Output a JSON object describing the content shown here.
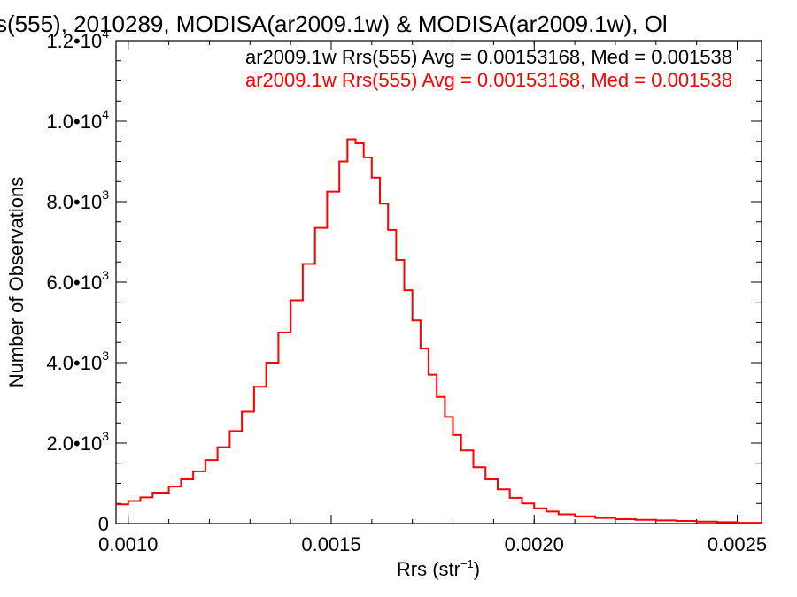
{
  "chart_data": {
    "type": "line",
    "title": "s(555), 2010289, MODISA(ar2009.1w) & MODISA(ar2009.1w), Ol",
    "xlabel": "Rrs (str",
    "xlabel_sup": "−1",
    "xlabel_tail": ")",
    "ylabel": "Number of Observations",
    "xlim": [
      0.00097,
      0.00256
    ],
    "ylim": [
      0,
      12000
    ],
    "x_ticks": [
      {
        "value": 0.001,
        "label": "0.0010"
      },
      {
        "value": 0.0015,
        "label": "0.0015"
      },
      {
        "value": 0.002,
        "label": "0.0020"
      },
      {
        "value": 0.0025,
        "label": "0.0025"
      }
    ],
    "y_ticks": [
      {
        "value": 0,
        "label": "0",
        "exp": ""
      },
      {
        "value": 2000,
        "label": "2.0•10",
        "exp": "3"
      },
      {
        "value": 4000,
        "label": "4.0•10",
        "exp": "3"
      },
      {
        "value": 6000,
        "label": "6.0•10",
        "exp": "3"
      },
      {
        "value": 8000,
        "label": "8.0•10",
        "exp": "3"
      },
      {
        "value": 10000,
        "label": "1.0•10",
        "exp": "4"
      },
      {
        "value": 12000,
        "label": "1.2•10",
        "exp": "4"
      }
    ],
    "legend": [
      {
        "text": "ar2009.1w Rrs(555) Avg = 0.00153168, Med = 0.001538",
        "color": "#000000"
      },
      {
        "text": "ar2009.1w Rrs(555) Avg = 0.00153168, Med = 0.001538",
        "color": "#ff0000"
      }
    ],
    "legend_position": "top-right",
    "grid": false,
    "series": [
      {
        "color": "#ff0000",
        "x": [
          0.00097,
          0.001,
          0.00103,
          0.00106,
          0.0011,
          0.00113,
          0.00116,
          0.00119,
          0.00122,
          0.00125,
          0.00128,
          0.00131,
          0.00134,
          0.00137,
          0.0014,
          0.00143,
          0.00146,
          0.00149,
          0.00152,
          0.00154,
          0.00156,
          0.00158,
          0.0016,
          0.00162,
          0.00164,
          0.00166,
          0.00168,
          0.0017,
          0.00172,
          0.00174,
          0.00176,
          0.00178,
          0.0018,
          0.00182,
          0.00185,
          0.00188,
          0.00191,
          0.00194,
          0.00197,
          0.002,
          0.00203,
          0.00206,
          0.0021,
          0.00215,
          0.0022,
          0.00225,
          0.0023,
          0.00235,
          0.0024,
          0.00245,
          0.0025,
          0.00256
        ],
        "y": [
          480,
          560,
          650,
          770,
          920,
          1100,
          1300,
          1580,
          1900,
          2300,
          2780,
          3400,
          4000,
          4750,
          5550,
          6450,
          7350,
          8250,
          9000,
          9550,
          9450,
          9100,
          8600,
          7950,
          7300,
          6550,
          5800,
          5050,
          4350,
          3700,
          3150,
          2650,
          2200,
          1820,
          1400,
          1100,
          850,
          640,
          500,
          380,
          300,
          230,
          180,
          140,
          110,
          95,
          80,
          65,
          50,
          35,
          20,
          10
        ]
      }
    ]
  }
}
